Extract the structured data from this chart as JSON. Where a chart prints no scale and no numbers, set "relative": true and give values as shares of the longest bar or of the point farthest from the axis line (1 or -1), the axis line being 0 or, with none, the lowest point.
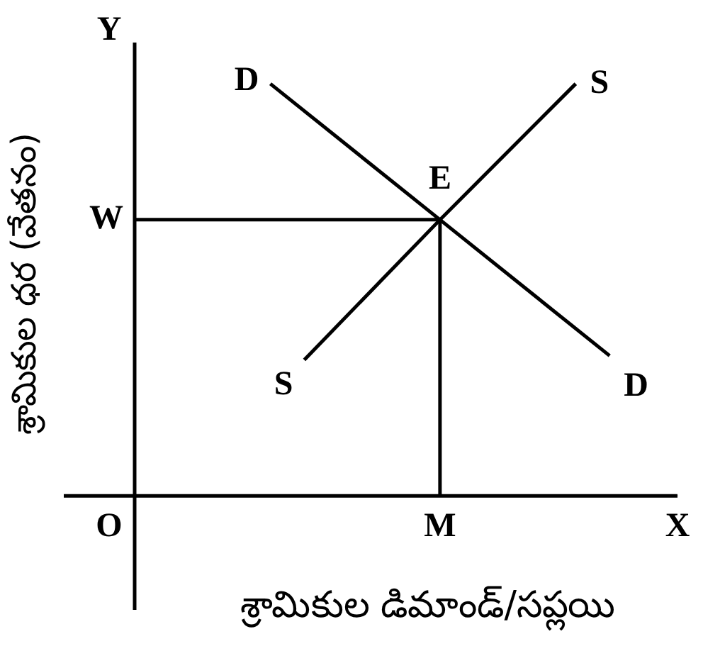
{
  "chart_data": {
    "type": "line",
    "relative": true,
    "xlabel": "శ్రామికుల డిమాండ్/సప్లయి",
    "ylabel": "శ్రామికుల ధర (వేతనం)",
    "categories": [
      null,
      null,
      null,
      null,
      null,
      null,
      null,
      null,
      null,
      null,
      null,
      null,
      null,
      null,
      null,
      null,
      null
    ],
    "series": [
      {
        "name": "D",
        "color": "#000000",
        "values": [
          null,
          null,
          null,
          null,
          1,
          null,
          null,
          null,
          null,
          0.67,
          null,
          null,
          null,
          null,
          0.34,
          null,
          null
        ]
      },
      {
        "name": "S",
        "color": "#000000",
        "values": [
          null,
          null,
          null,
          null,
          null,
          0.33,
          null,
          null,
          null,
          0.67,
          null,
          null,
          null,
          1,
          null,
          null,
          null
        ]
      }
    ],
    "ref_lines": [
      {
        "axis": "y",
        "value": 0.67,
        "label": "W",
        "color": "#000000"
      }
    ],
    "annotations": [
      "O",
      "X",
      "Y",
      "E",
      "M"
    ],
    "legend": false,
    "marker": "none",
    "line_style": "solid"
  }
}
